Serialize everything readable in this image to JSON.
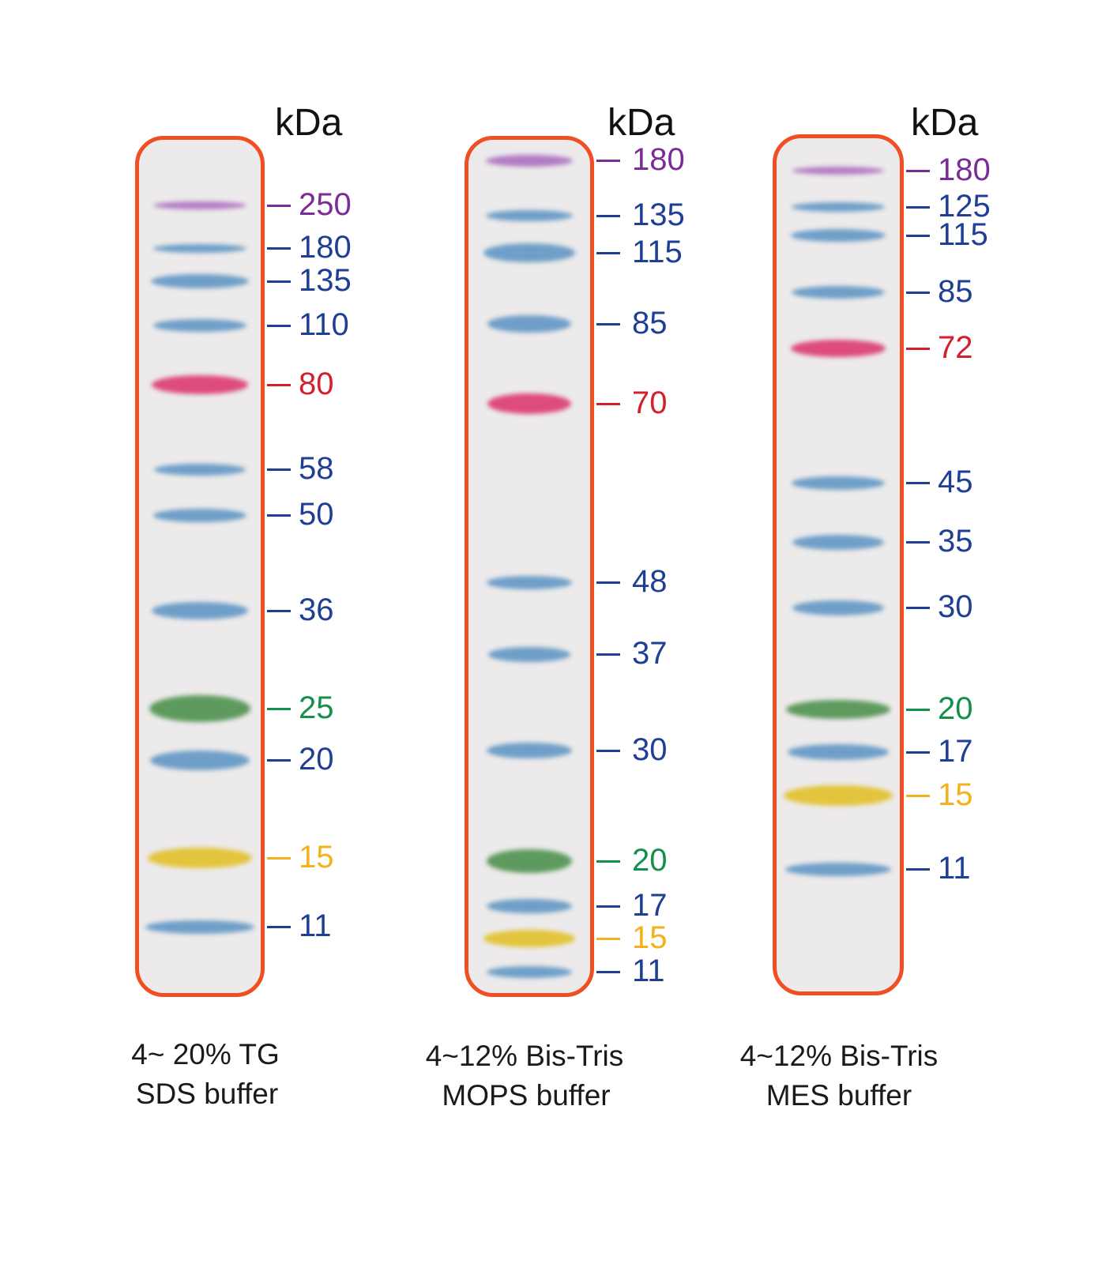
{
  "unit_label": "kDa",
  "colors": {
    "lane_border": "#f04e23",
    "lane_fill": "#eceaea",
    "band_purple": "#b27cc4",
    "band_blue": "#6f9fc8",
    "band_red": "#dd4c7c",
    "band_green": "#5e9a5e",
    "band_yellow": "#e3c43d",
    "label_purple": "#7a2c97",
    "label_blue": "#1f3f94",
    "label_red": "#d41f2c",
    "label_green": "#14904a",
    "label_yellow": "#f3b21a"
  },
  "panels": [
    {
      "caption_line1": "4~ 20% TG",
      "caption_line2": "SDS buffer",
      "markers": [
        {
          "kda": "250",
          "color": "purple"
        },
        {
          "kda": "180",
          "color": "blue"
        },
        {
          "kda": "135",
          "color": "blue"
        },
        {
          "kda": "110",
          "color": "blue"
        },
        {
          "kda": "80",
          "color": "red"
        },
        {
          "kda": "58",
          "color": "blue"
        },
        {
          "kda": "50",
          "color": "blue"
        },
        {
          "kda": "36",
          "color": "blue"
        },
        {
          "kda": "25",
          "color": "green"
        },
        {
          "kda": "20",
          "color": "blue"
        },
        {
          "kda": "15",
          "color": "yellow"
        },
        {
          "kda": "11",
          "color": "blue"
        }
      ]
    },
    {
      "caption_line1": "4~12% Bis-Tris",
      "caption_line2": "MOPS buffer",
      "markers": [
        {
          "kda": "180",
          "color": "purple"
        },
        {
          "kda": "135",
          "color": "blue"
        },
        {
          "kda": "115",
          "color": "blue"
        },
        {
          "kda": "85",
          "color": "blue"
        },
        {
          "kda": "70",
          "color": "red"
        },
        {
          "kda": "48",
          "color": "blue"
        },
        {
          "kda": "37",
          "color": "blue"
        },
        {
          "kda": "30",
          "color": "blue"
        },
        {
          "kda": "20",
          "color": "green"
        },
        {
          "kda": "17",
          "color": "blue"
        },
        {
          "kda": "15",
          "color": "yellow"
        },
        {
          "kda": "11",
          "color": "blue"
        }
      ]
    },
    {
      "caption_line1": "4~12% Bis-Tris",
      "caption_line2": "MES buffer",
      "markers": [
        {
          "kda": "180",
          "color": "purple"
        },
        {
          "kda": "125",
          "color": "blue"
        },
        {
          "kda": "115",
          "color": "blue"
        },
        {
          "kda": "85",
          "color": "blue"
        },
        {
          "kda": "72",
          "color": "red"
        },
        {
          "kda": "45",
          "color": "blue"
        },
        {
          "kda": "35",
          "color": "blue"
        },
        {
          "kda": "30",
          "color": "blue"
        },
        {
          "kda": "20",
          "color": "green"
        },
        {
          "kda": "17",
          "color": "blue"
        },
        {
          "kda": "15",
          "color": "yellow"
        },
        {
          "kda": "11",
          "color": "blue"
        }
      ]
    }
  ]
}
